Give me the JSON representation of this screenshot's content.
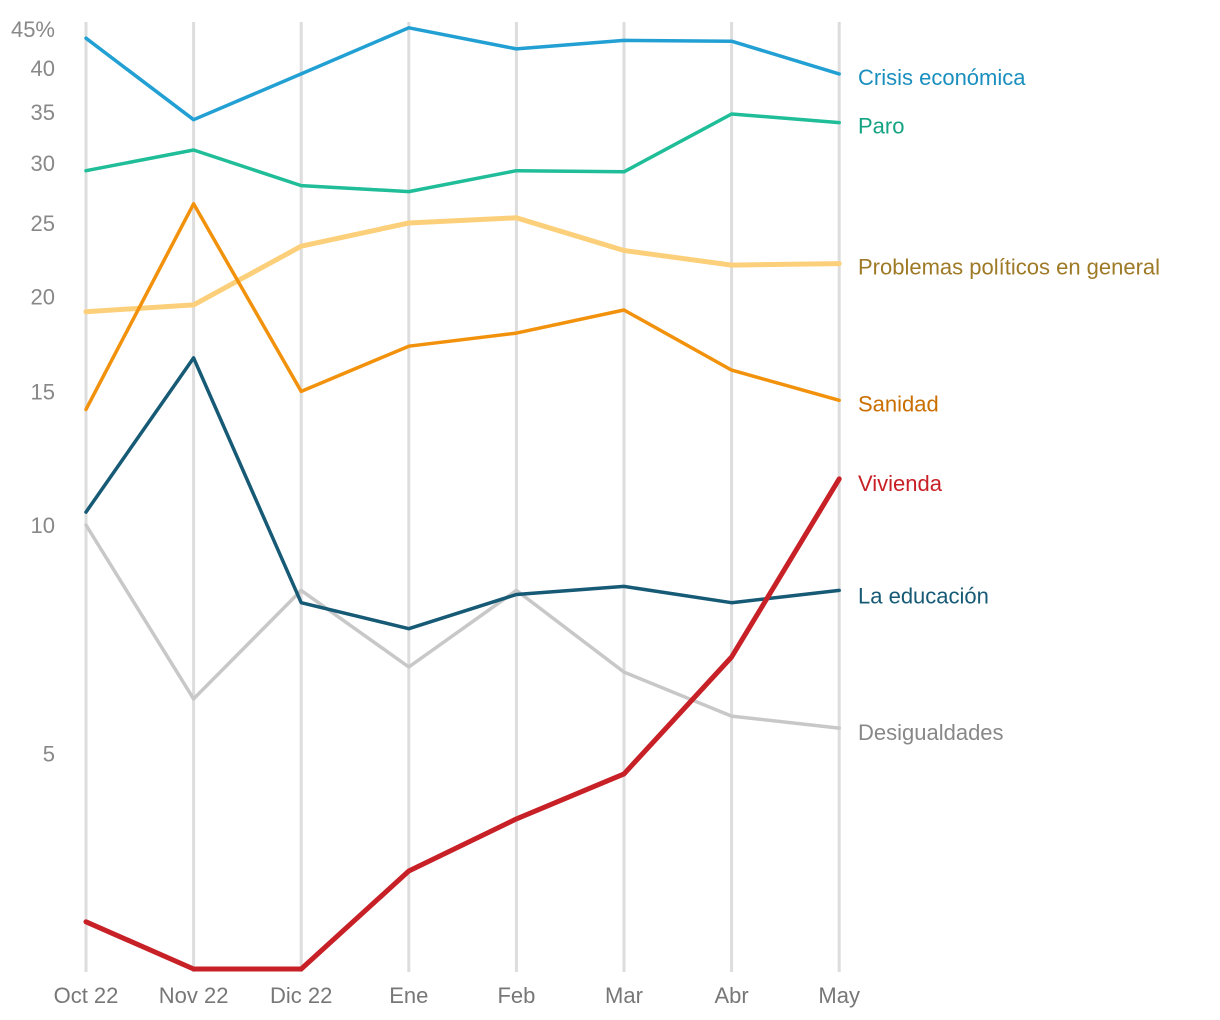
{
  "chart_data": {
    "type": "line",
    "y_scale": "log",
    "ylim": [
      2.6,
      46
    ],
    "y_unit": "%",
    "grid": "vertical",
    "legend": "inline-right",
    "categories": [
      "Oct 22",
      "Nov 22",
      "Dic 22",
      "Ene",
      "Feb",
      "Mar",
      "Abr",
      "May"
    ],
    "y_ticks": [
      {
        "value": 45,
        "label": "45%"
      },
      {
        "value": 40,
        "label": "40"
      },
      {
        "value": 35,
        "label": "35"
      },
      {
        "value": 30,
        "label": "30"
      },
      {
        "value": 25,
        "label": "25"
      },
      {
        "value": 20,
        "label": "20"
      },
      {
        "value": 15,
        "label": "15"
      },
      {
        "value": 10,
        "label": "10"
      },
      {
        "value": 5,
        "label": "5"
      }
    ],
    "series": [
      {
        "name": "Crisis económica",
        "color": "#23a0d3",
        "label_color": "#1a8fbf",
        "values": [
          43.8,
          34.2,
          39.3,
          45.2,
          42.4,
          43.5,
          43.4,
          39.3
        ]
      },
      {
        "name": "Paro",
        "color": "#1fbd98",
        "label_color": "#14a383",
        "values": [
          29.3,
          31.2,
          28.0,
          27.5,
          29.3,
          29.2,
          34.8,
          33.9
        ]
      },
      {
        "name": "Problemas políticos en general",
        "color": "#fcd07a",
        "label_color": "#9e7a26",
        "values": [
          19.1,
          19.5,
          23.3,
          25.0,
          25.4,
          23.0,
          22.0,
          22.1
        ]
      },
      {
        "name": "Sanidad",
        "color": "#f2920c",
        "label_color": "#c96e00",
        "values": [
          14.2,
          26.5,
          15.0,
          17.2,
          17.9,
          19.2,
          16.0,
          14.6
        ]
      },
      {
        "name": "Vivienda",
        "color": "#c72026",
        "label_color": "#c72026",
        "values": [
          3.0,
          2.6,
          2.6,
          3.5,
          4.1,
          4.7,
          6.7,
          11.5
        ]
      },
      {
        "name": "La educación",
        "color": "#165a76",
        "label_color": "#165a76",
        "values": [
          10.4,
          16.6,
          7.9,
          7.3,
          8.1,
          8.3,
          7.9,
          8.2
        ]
      },
      {
        "name": "Desigualdades",
        "color": "#c8c8c8",
        "label_color": "#888888",
        "values": [
          10.0,
          5.9,
          8.2,
          6.5,
          8.2,
          6.4,
          5.6,
          5.4
        ]
      }
    ]
  }
}
